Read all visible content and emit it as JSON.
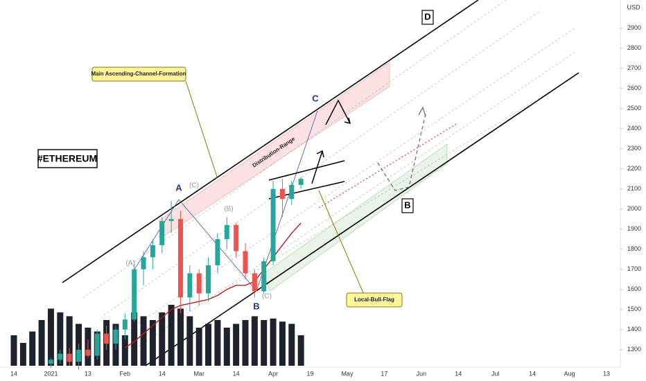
{
  "chart_data": {
    "type": "candlestick",
    "title": "#ETHEREUM",
    "currency": "USD",
    "categories": [
      "14",
      null,
      null,
      null,
      "2021",
      null,
      null,
      null,
      "13",
      null,
      null,
      null,
      "Feb",
      null,
      null,
      null,
      "14",
      null,
      null,
      null,
      "Mar",
      null,
      null,
      null,
      "14",
      null,
      null,
      null,
      "Apr",
      null,
      null,
      null,
      "19",
      null,
      null,
      null,
      "May",
      null,
      null,
      null,
      "17",
      null,
      null,
      null,
      "Jun",
      null,
      null,
      null,
      "14",
      null,
      null,
      null,
      "Jul",
      null,
      null,
      null,
      "14",
      null,
      null,
      null,
      "Aug",
      null,
      null,
      null,
      "13"
    ],
    "open": [
      null,
      null,
      null,
      null,
      1230,
      1250,
      1280,
      1240,
      1300,
      1270,
      1380,
      1330,
      1400,
      1450,
      1700,
      1760,
      1820,
      1940,
      1950,
      1560,
      1680,
      1580,
      1720,
      1850,
      1920,
      1790,
      1680,
      1590,
      1740,
      2100,
      2050,
      2120,
      null,
      null,
      null,
      null,
      null,
      null,
      null,
      null,
      null,
      null,
      null,
      null,
      null,
      null,
      null,
      null,
      null,
      null,
      null,
      null,
      null,
      null,
      null,
      null,
      null,
      null,
      null,
      null,
      null,
      null,
      null,
      null,
      null
    ],
    "high": [
      null,
      null,
      null,
      null,
      1260,
      1300,
      1310,
      1330,
      1350,
      1400,
      1420,
      1420,
      1480,
      1730,
      1790,
      1850,
      1960,
      2040,
      1990,
      1720,
      1700,
      1760,
      1880,
      1960,
      1930,
      1830,
      1700,
      1760,
      2140,
      2150,
      2140,
      2160,
      null,
      null,
      null,
      null,
      null,
      null,
      null,
      null,
      null,
      null,
      null,
      null,
      null,
      null,
      null,
      null,
      null,
      null,
      null,
      null,
      null,
      null,
      null,
      null,
      null,
      null,
      null,
      null,
      null,
      null,
      null,
      null,
      null
    ],
    "low": [
      null,
      null,
      null,
      null,
      1210,
      1230,
      1220,
      1200,
      1260,
      1250,
      1300,
      1300,
      1350,
      1440,
      1620,
      1700,
      1780,
      1880,
      1480,
      1490,
      1520,
      1540,
      1680,
      1800,
      1760,
      1650,
      1560,
      1580,
      1720,
      1960,
      2020,
      2100,
      null,
      null,
      null,
      null,
      null,
      null,
      null,
      null,
      null,
      null,
      null,
      null,
      null,
      null,
      null,
      null,
      null,
      null,
      null,
      null,
      null,
      null,
      null,
      null,
      null,
      null,
      null,
      null,
      null,
      null,
      null,
      null,
      null
    ],
    "close": [
      null,
      null,
      null,
      null,
      1250,
      1280,
      1240,
      1300,
      1270,
      1380,
      1330,
      1400,
      1450,
      1700,
      1760,
      1820,
      1940,
      1950,
      1560,
      1680,
      1580,
      1720,
      1850,
      1920,
      1790,
      1680,
      1590,
      1740,
      2100,
      2050,
      2120,
      2150,
      null,
      null,
      null,
      null,
      null,
      null,
      null,
      null,
      null,
      null,
      null,
      null,
      null,
      null,
      null,
      null,
      null,
      null,
      null,
      null,
      null,
      null,
      null,
      null,
      null,
      null,
      null,
      null,
      null,
      null,
      null,
      null,
      null
    ],
    "volume": [
      40,
      30,
      45,
      60,
      75,
      70,
      65,
      55,
      50,
      45,
      60,
      55,
      40,
      70,
      65,
      60,
      70,
      80,
      75,
      65,
      50,
      55,
      60,
      50,
      55,
      60,
      65,
      60,
      62,
      58,
      55,
      40,
      null,
      null,
      null,
      null,
      null,
      null,
      null,
      null,
      null,
      null,
      null,
      null,
      null,
      null,
      null,
      null,
      null,
      null,
      null,
      null,
      null,
      null,
      null,
      null,
      null,
      null,
      null,
      null,
      null,
      null,
      null,
      null,
      null
    ],
    "ma": {
      "color": "#b71c1c",
      "values": [
        null,
        null,
        null,
        null,
        null,
        null,
        null,
        null,
        null,
        null,
        null,
        null,
        1310,
        1340,
        1380,
        1420,
        1460,
        1500,
        1520,
        1530,
        1540,
        1550,
        1570,
        1600,
        1620,
        1620,
        1640,
        1700,
        1760,
        1820,
        1880,
        1930,
        null,
        null,
        null,
        null,
        null,
        null,
        null,
        null,
        null,
        null,
        null,
        null,
        null,
        null,
        null,
        null,
        null,
        null,
        null,
        null,
        null,
        null,
        null,
        null,
        null,
        null,
        null,
        null,
        null,
        null,
        null,
        null,
        null
      ]
    },
    "up_color": "#26a69a",
    "down_color": "#ef5350",
    "volume_color": "#1e222d",
    "ylim": [
      1220,
      3040
    ],
    "yticks": [
      1300,
      1400,
      1500,
      1600,
      1700,
      1800,
      1900,
      2000,
      2100,
      2200,
      2300,
      2400,
      2500,
      2600,
      2700,
      2800,
      2900
    ],
    "annotations": {
      "channel": "Main Ascending-Channel-Formation",
      "range": "Distribution-Range",
      "flag": "Local-Bull-Flag",
      "points": [
        "A",
        "B",
        "C",
        "D",
        "B"
      ],
      "waves": [
        "(A)",
        "(B)",
        "(C)",
        "(C)"
      ]
    }
  }
}
